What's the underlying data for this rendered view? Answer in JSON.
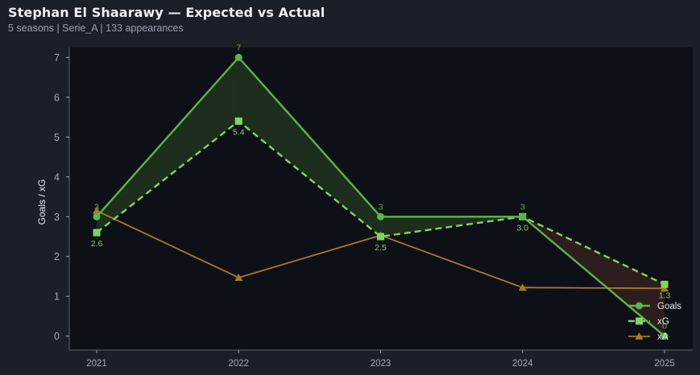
{
  "header": {
    "title": "Stephan El Shaarawy — Expected vs Actual",
    "subtitle": "5 seasons | Serie_A | 133 appearances"
  },
  "colors": {
    "goals": "#5cb548",
    "xg": "#7ed65e",
    "xa": "#a87a22",
    "over_fill": "#1d2e1d",
    "under_fill": "#2e1d1d",
    "plot_bg": "#0d1017"
  },
  "chart_data": {
    "type": "line",
    "title": "Stephan El Shaarawy — Expected vs Actual",
    "xlabel": "",
    "ylabel": "Goals / xG",
    "x": [
      "2021",
      "2022",
      "2023",
      "2024",
      "2025"
    ],
    "ylim": [
      -0.35,
      7.25
    ],
    "yticks": [
      0,
      1,
      2,
      3,
      4,
      5,
      6,
      7
    ],
    "grid": false,
    "legend_position": "bottom-right",
    "series": [
      {
        "name": "Goals",
        "key": "goals",
        "marker": "circle",
        "dashed": false,
        "values": [
          3,
          7,
          3,
          3,
          0
        ],
        "labels": [
          "3",
          "7",
          "3",
          "3",
          "0"
        ]
      },
      {
        "name": "xG",
        "key": "xg",
        "marker": "square",
        "dashed": true,
        "values": [
          2.6,
          5.4,
          2.5,
          3.0,
          1.3
        ],
        "labels": [
          "2.6",
          "5.4",
          "2.5",
          "3.0",
          "1.3"
        ]
      },
      {
        "name": "xA",
        "key": "xa",
        "marker": "triangle",
        "dashed": false,
        "values": [
          3.15,
          1.47,
          2.53,
          1.22,
          1.2
        ]
      }
    ]
  }
}
